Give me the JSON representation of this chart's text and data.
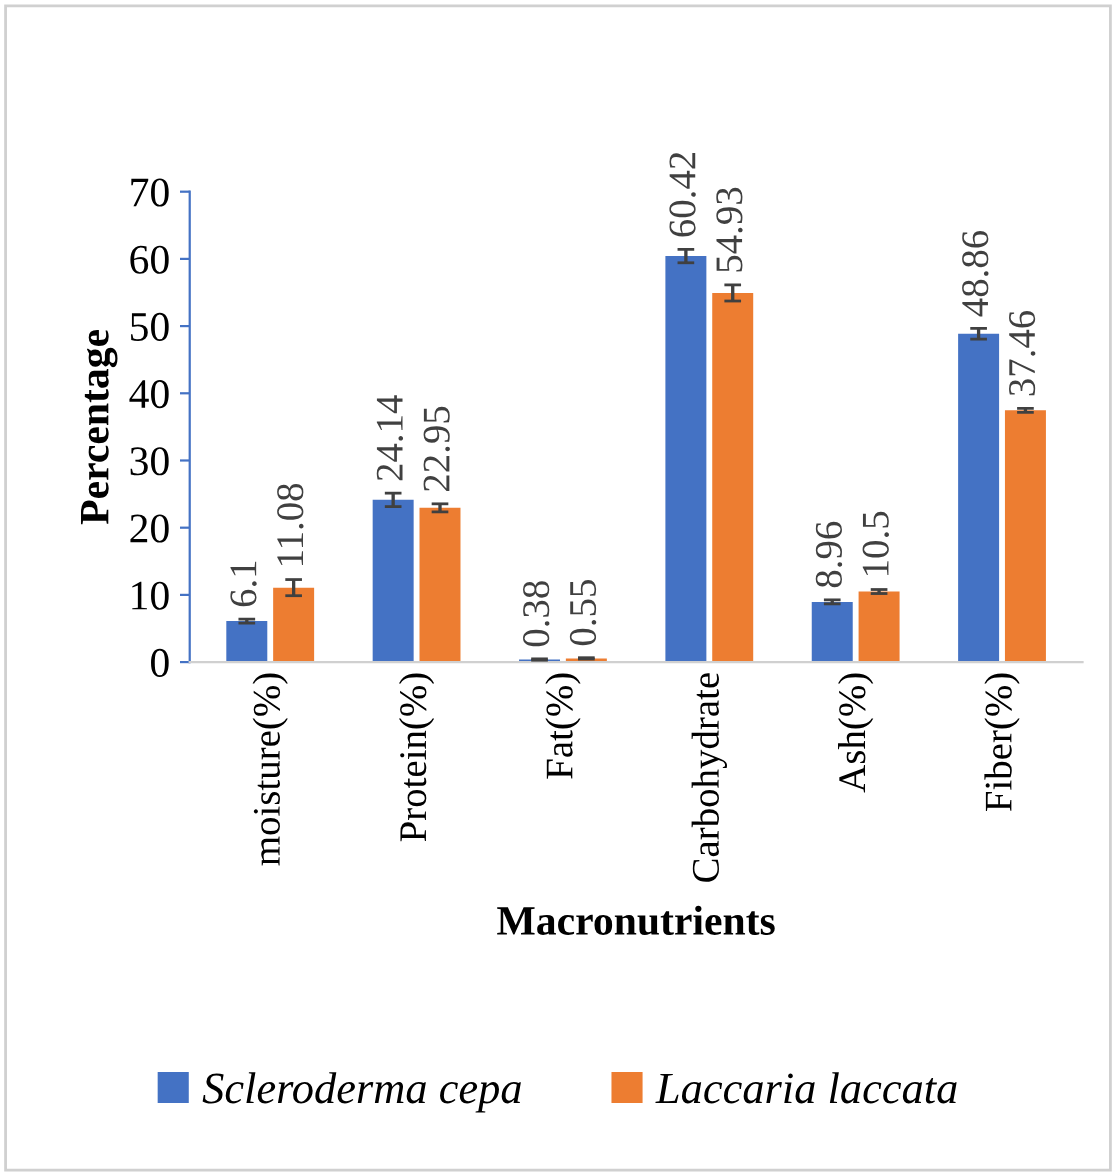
{
  "chart_data": {
    "type": "bar",
    "xlabel": "Macronutrients",
    "ylabel": "Percentage",
    "categories": [
      "moisture(%)",
      "Protein(%)",
      "Fat(%)",
      "Carbohydrate",
      "Ash(%)",
      "Fiber(%)"
    ],
    "series": [
      {
        "name": "Scleroderma cepa",
        "color": "#4472c4",
        "values": [
          6.1,
          24.14,
          0.38,
          60.42,
          8.96,
          48.86
        ],
        "errors": [
          0.3,
          1.0,
          0.1,
          1.0,
          0.3,
          0.8
        ]
      },
      {
        "name": "Laccaria laccata",
        "color": "#ed7d31",
        "values": [
          11.08,
          22.95,
          0.55,
          54.93,
          10.5,
          37.46
        ],
        "errors": [
          1.2,
          0.6,
          0.1,
          1.2,
          0.3,
          0.3
        ]
      }
    ],
    "ylim": [
      0,
      70
    ],
    "yticks": [
      0,
      10,
      20,
      30,
      40,
      50,
      60,
      70
    ],
    "data_labels": true,
    "grid": false,
    "legend": "bottom"
  }
}
